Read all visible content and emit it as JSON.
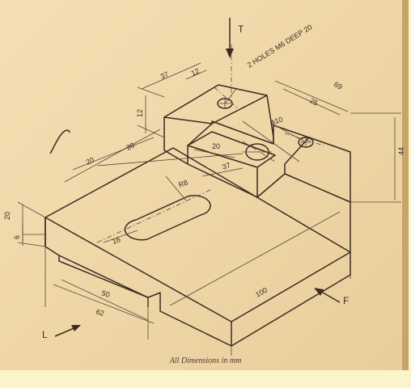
{
  "caption": "All Dimensions in mm",
  "view_labels": {
    "top": "T",
    "front": "F",
    "left": "L"
  },
  "dimensions": {
    "length_total": "100",
    "base_width": "62",
    "slot_width": "50",
    "base_height": "20",
    "slot_depth": "6",
    "total_height": "44",
    "block_length": "37",
    "block_height": "12",
    "block_offset": "12",
    "dim_20_a": "20",
    "dim_20_b": "20",
    "dim_20_c": "20",
    "dim_37_b": "37",
    "dim_25": "25",
    "dim_69": "69",
    "dim_16": "16",
    "dim_R8": "R8",
    "dim_d10": "ϕ10"
  },
  "holes_note": "2 HOLES M6 DEEP 20",
  "colors": {
    "paper": "#efd7a8",
    "ink": "#3b2b22",
    "margin": "#fbf3c9"
  }
}
